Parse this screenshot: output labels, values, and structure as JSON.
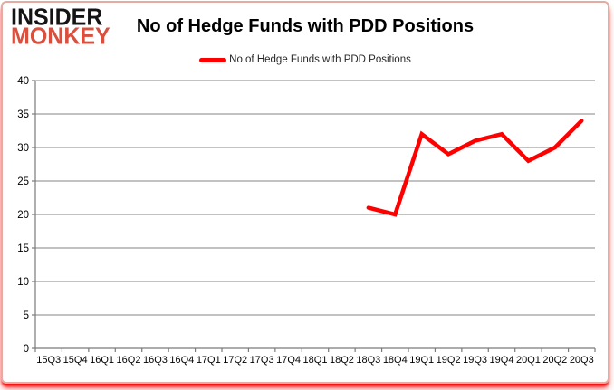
{
  "branding": {
    "line1": "INSIDER",
    "line2": "MONKEY"
  },
  "header": {
    "title": "No of Hedge Funds with PDD Positions"
  },
  "legend": {
    "label": "No of Hedge Funds with PDD Positions"
  },
  "colors": {
    "line": "#ff0000",
    "grid": "#848484",
    "axis": "#7a7a7a",
    "tick_text": "#000000",
    "logo_insider": "#141414",
    "logo_monkey": "#d9503e",
    "border": "#e5aaa2",
    "shadow": "#ff0000",
    "background": "#ffffff"
  },
  "chart_data": {
    "type": "line",
    "title": "No of Hedge Funds with PDD Positions",
    "categories": [
      "15Q3",
      "15Q4",
      "16Q1",
      "16Q2",
      "16Q3",
      "16Q4",
      "17Q1",
      "17Q2",
      "17Q3",
      "17Q4",
      "18Q1",
      "18Q2",
      "18Q3",
      "18Q4",
      "19Q1",
      "19Q2",
      "19Q3",
      "19Q4",
      "20Q1",
      "20Q2",
      "20Q3"
    ],
    "series": [
      {
        "name": "No of Hedge Funds with PDD Positions",
        "color": "#ff0000",
        "values": [
          null,
          null,
          null,
          null,
          null,
          null,
          null,
          null,
          null,
          null,
          null,
          null,
          21,
          20,
          32,
          29,
          31,
          32,
          28,
          30,
          34
        ]
      }
    ],
    "xlabel": "",
    "ylabel": "",
    "ylim": [
      0,
      40
    ],
    "yticks": [
      0,
      5,
      10,
      15,
      20,
      25,
      30,
      35,
      40
    ],
    "grid": true,
    "legend_position": "top"
  }
}
